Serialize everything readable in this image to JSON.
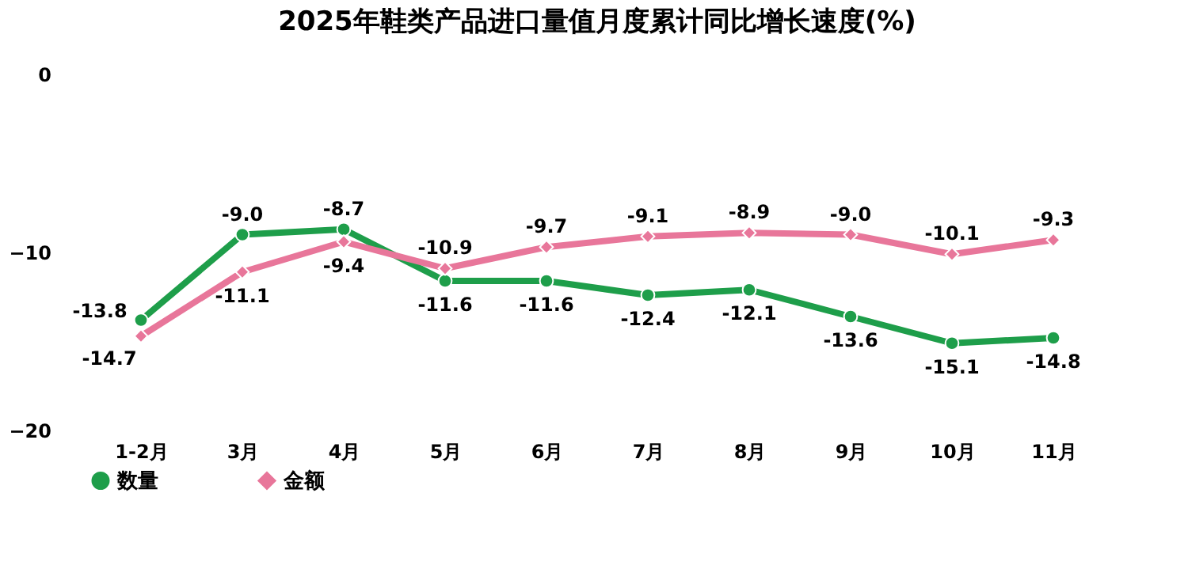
{
  "chart_data": {
    "type": "line",
    "title": "2025年鞋类产品进口量值月度累计同比增长速度(%)",
    "categories": [
      "1-2月",
      "3月",
      "4月",
      "5月",
      "6月",
      "7月",
      "8月",
      "9月",
      "10月",
      "11月"
    ],
    "series": [
      {
        "name": "数量",
        "color": "#1e9e4a",
        "marker": "circle",
        "values": [
          -13.8,
          -9.0,
          -8.7,
          -11.6,
          -11.6,
          -12.4,
          -12.1,
          -13.6,
          -15.1,
          -14.8
        ],
        "value_labels": [
          "-13.8",
          "-9.0",
          "-8.7",
          "-11.6",
          "-11.6",
          "-12.4",
          "-12.1",
          "-13.6",
          "-15.1",
          "-14.8"
        ]
      },
      {
        "name": "金额",
        "color": "#e8769a",
        "marker": "diamond",
        "values": [
          -14.7,
          -11.1,
          -9.4,
          -10.9,
          -9.7,
          -9.1,
          -8.9,
          -9.0,
          -10.1,
          -9.3
        ],
        "value_labels": [
          "-14.7",
          "-11.1",
          "-9.4",
          "-10.9",
          "-9.7",
          "-9.1",
          "-8.9",
          "-9.0",
          "-10.1",
          "-9.3"
        ]
      }
    ],
    "ylim": [
      -20,
      0
    ],
    "yticks": [
      0,
      -10,
      -20
    ],
    "grid": false,
    "legend": "bottom",
    "line_style": "solid"
  }
}
